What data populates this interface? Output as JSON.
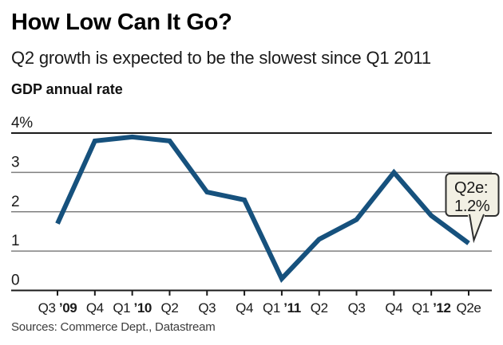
{
  "chart_data": {
    "type": "line",
    "title": "How Low Can It Go?",
    "subtitle": "Q2 growth is expected to be the slowest since Q1 2011",
    "value_label": "GDP annual rate",
    "x_labels": [
      {
        "quarter": "Q3",
        "year": "’09"
      },
      {
        "quarter": "Q4",
        "year": ""
      },
      {
        "quarter": "Q1",
        "year": "’10"
      },
      {
        "quarter": "Q2",
        "year": ""
      },
      {
        "quarter": "Q3",
        "year": ""
      },
      {
        "quarter": "Q4",
        "year": ""
      },
      {
        "quarter": "Q1",
        "year": "’11"
      },
      {
        "quarter": "Q2",
        "year": ""
      },
      {
        "quarter": "Q3",
        "year": ""
      },
      {
        "quarter": "Q4",
        "year": ""
      },
      {
        "quarter": "Q1",
        "year": "’12"
      },
      {
        "quarter": "Q2e",
        "year": ""
      }
    ],
    "values": [
      1.7,
      3.8,
      3.9,
      3.8,
      2.5,
      2.3,
      0.3,
      1.3,
      1.8,
      3.0,
      1.9,
      1.2
    ],
    "ylim": [
      0,
      4
    ],
    "y_ticks": [
      {
        "value": 4,
        "label": "4%"
      },
      {
        "value": 3,
        "label": "3"
      },
      {
        "value": 2,
        "label": "2"
      },
      {
        "value": 1,
        "label": "1"
      },
      {
        "value": 0,
        "label": "0"
      }
    ],
    "grid": true,
    "legend_position": "none",
    "annotation": {
      "line1": "Q2e:",
      "line2": "1.2%",
      "point_index": 11,
      "value": 1.2
    },
    "source": "Sources: Commerce Dept., Datastream",
    "colors": {
      "line": "#16517d",
      "grid": "#7f7f7f",
      "axis": "#1a1a1a",
      "text": "#1a1a1a",
      "callout_fill": "#f2f0e4",
      "callout_border": "#2e2e2e"
    }
  }
}
